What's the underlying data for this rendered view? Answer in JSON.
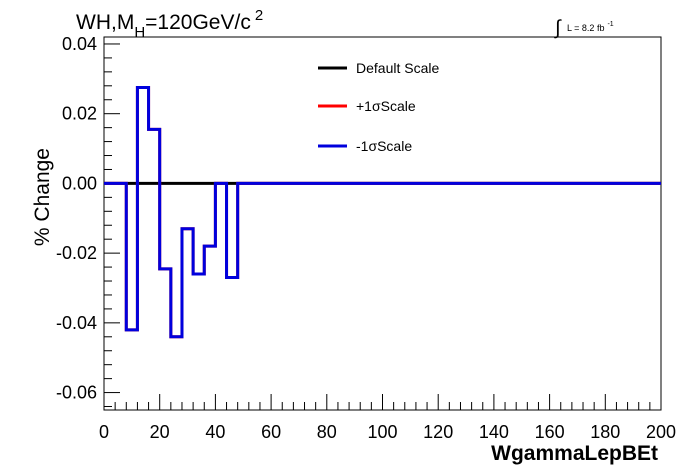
{
  "chart_data": {
    "type": "line",
    "title_main": "WH,M",
    "title_sub": "H",
    "title_rest": "=120GeV/c",
    "title_sup": "2",
    "lumi_label": "L = 8.2 fb",
    "lumi_sup": "-1",
    "xlabel": "WgammaLepBEt",
    "ylabel": "% Change",
    "xlim": [
      0,
      200
    ],
    "ylim": [
      -0.065,
      0.042
    ],
    "xticks": [
      0,
      20,
      40,
      60,
      80,
      100,
      120,
      140,
      160,
      180,
      200
    ],
    "xtick_labels": [
      "0",
      "20",
      "40",
      "60",
      "80",
      "100",
      "120",
      "140",
      "160",
      "180",
      "200"
    ],
    "yticks": [
      -0.06,
      -0.04,
      -0.02,
      0.0,
      0.02,
      0.04
    ],
    "ytick_labels": [
      "-0.06",
      "-0.04",
      "-0.02",
      "0.00",
      "0.02",
      "0.04"
    ],
    "legend_position": "top-center",
    "series": [
      {
        "name": "Default Scale",
        "color": "#000000",
        "bin_edges": [
          0,
          200
        ],
        "values": [
          0
        ]
      },
      {
        "name": "+1σScale",
        "color": "#ff0000",
        "bin_edges": [
          0,
          8,
          12,
          16,
          20,
          24,
          28,
          32,
          36,
          40,
          44,
          48,
          200
        ],
        "values": [
          0,
          -0.042,
          0.0275,
          0.0155,
          -0.0245,
          -0.044,
          -0.013,
          -0.026,
          -0.018,
          0,
          -0.027,
          0
        ]
      },
      {
        "name": "-1σScale",
        "color": "#0000dd",
        "bin_edges": [
          0,
          8,
          12,
          16,
          20,
          24,
          28,
          32,
          36,
          40,
          44,
          48,
          200
        ],
        "values": [
          0,
          -0.042,
          0.0275,
          0.0155,
          -0.0245,
          -0.044,
          -0.013,
          -0.026,
          -0.018,
          0,
          -0.027,
          0
        ]
      }
    ]
  }
}
